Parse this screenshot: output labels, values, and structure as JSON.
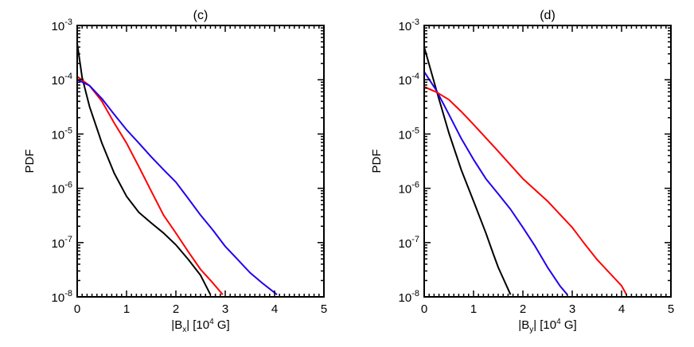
{
  "chart_data": [
    {
      "type": "line",
      "title": "(c)",
      "xlabel": "|Bx| [10^4 G]",
      "xlabel_parts": [
        {
          "t": "|B"
        },
        {
          "t": "x",
          "sub": true
        },
        {
          "t": "| [10"
        },
        {
          "t": "4",
          "sup": true
        },
        {
          "t": " G]"
        }
      ],
      "ylabel": "PDF",
      "xlim": [
        0,
        5
      ],
      "ylim": [
        1e-08,
        0.001
      ],
      "yscale": "log",
      "grid": false,
      "xticks": [
        "0",
        "1",
        "2",
        "3",
        "4",
        "5"
      ],
      "yticks": [
        {
          "base": "10",
          "exp": "-3"
        },
        {
          "base": "10",
          "exp": "-4"
        },
        {
          "base": "10",
          "exp": "-5"
        },
        {
          "base": "10",
          "exp": "-6"
        },
        {
          "base": "10",
          "exp": "-7"
        },
        {
          "base": "10",
          "exp": "-8"
        }
      ],
      "series": [
        {
          "color": "#000000",
          "x": [
            0,
            0.1,
            0.25,
            0.5,
            0.75,
            1,
            1.25,
            1.5,
            1.75,
            2,
            2.25,
            2.5,
            2.7
          ],
          "y": [
            0.00047,
            0.00011,
            3.2e-05,
            6.8e-06,
            1.9e-06,
            7.1e-07,
            3.6e-07,
            2.3e-07,
            1.5e-07,
            9.1e-08,
            4.9e-08,
            2.5e-08,
            1.1e-08
          ]
        },
        {
          "color": "#ff0000",
          "x": [
            0,
            0.25,
            0.5,
            0.75,
            1,
            1.25,
            1.5,
            1.75,
            2,
            2.25,
            2.5,
            2.75,
            2.95
          ],
          "y": [
            0.000115,
            7.8e-05,
            4e-05,
            1.6e-05,
            6.8e-06,
            2.5e-06,
            8.9e-07,
            3.2e-07,
            1.5e-07,
            6.8e-08,
            3.2e-08,
            1.8e-08,
            1.1e-08
          ]
        },
        {
          "color": "#2200ee",
          "x": [
            0,
            0.25,
            0.5,
            0.75,
            1,
            1.25,
            1.5,
            1.75,
            2,
            2.25,
            2.5,
            2.75,
            3,
            3.25,
            3.5,
            3.75,
            4.05
          ],
          "y": [
            0.0001,
            7.8e-05,
            4.5e-05,
            2.3e-05,
            1.2e-05,
            6.8e-06,
            3.8e-06,
            2.2e-06,
            1.3e-06,
            6.5e-07,
            3.2e-07,
            1.7e-07,
            8.5e-08,
            4.9e-08,
            2.8e-08,
            1.8e-08,
            1.1e-08
          ]
        }
      ]
    },
    {
      "type": "line",
      "title": "(d)",
      "xlabel": "|By| [10^4 G]",
      "xlabel_parts": [
        {
          "t": "|B"
        },
        {
          "t": "y",
          "sub": true
        },
        {
          "t": "| [10"
        },
        {
          "t": "4",
          "sup": true
        },
        {
          "t": " G]"
        }
      ],
      "ylabel": "PDF",
      "xlim": [
        0,
        5
      ],
      "ylim": [
        1e-08,
        0.001
      ],
      "yscale": "log",
      "grid": false,
      "xticks": [
        "0",
        "1",
        "2",
        "3",
        "4",
        "5"
      ],
      "yticks": [
        {
          "base": "10",
          "exp": "-3"
        },
        {
          "base": "10",
          "exp": "-4"
        },
        {
          "base": "10",
          "exp": "-5"
        },
        {
          "base": "10",
          "exp": "-6"
        },
        {
          "base": "10",
          "exp": "-7"
        },
        {
          "base": "10",
          "exp": "-8"
        }
      ],
      "series": [
        {
          "color": "#000000",
          "x": [
            0,
            0.25,
            0.5,
            0.75,
            1,
            1.25,
            1.4,
            1.5,
            1.6,
            1.75
          ],
          "y": [
            0.0004,
            6.3e-05,
            1.05e-05,
            2.2e-06,
            5.8e-07,
            1.5e-07,
            6.2e-08,
            3.5e-08,
            2.2e-08,
            1.1e-08
          ]
        },
        {
          "color": "#2200ee",
          "x": [
            0,
            0.25,
            0.5,
            0.75,
            1,
            1.25,
            1.5,
            1.75,
            2,
            2.25,
            2.5,
            2.75,
            2.9
          ],
          "y": [
            0.00014,
            6.3e-05,
            2.3e-05,
            8.3e-06,
            3.4e-06,
            1.5e-06,
            7.9e-07,
            4.1e-07,
            1.9e-07,
            8.5e-08,
            3.5e-08,
            1.6e-08,
            1.1e-08
          ]
        },
        {
          "color": "#ff0000",
          "x": [
            0,
            0.25,
            0.5,
            0.75,
            1,
            1.5,
            2,
            2.5,
            3,
            3.25,
            3.5,
            3.75,
            4,
            4.1
          ],
          "y": [
            7.4e-05,
            5.9e-05,
            4.3e-05,
            2.6e-05,
            1.5e-05,
            4.8e-06,
            1.5e-06,
            5.8e-07,
            1.9e-07,
            9.5e-08,
            4.9e-08,
            2.8e-08,
            1.6e-08,
            1.1e-08
          ]
        }
      ]
    }
  ]
}
